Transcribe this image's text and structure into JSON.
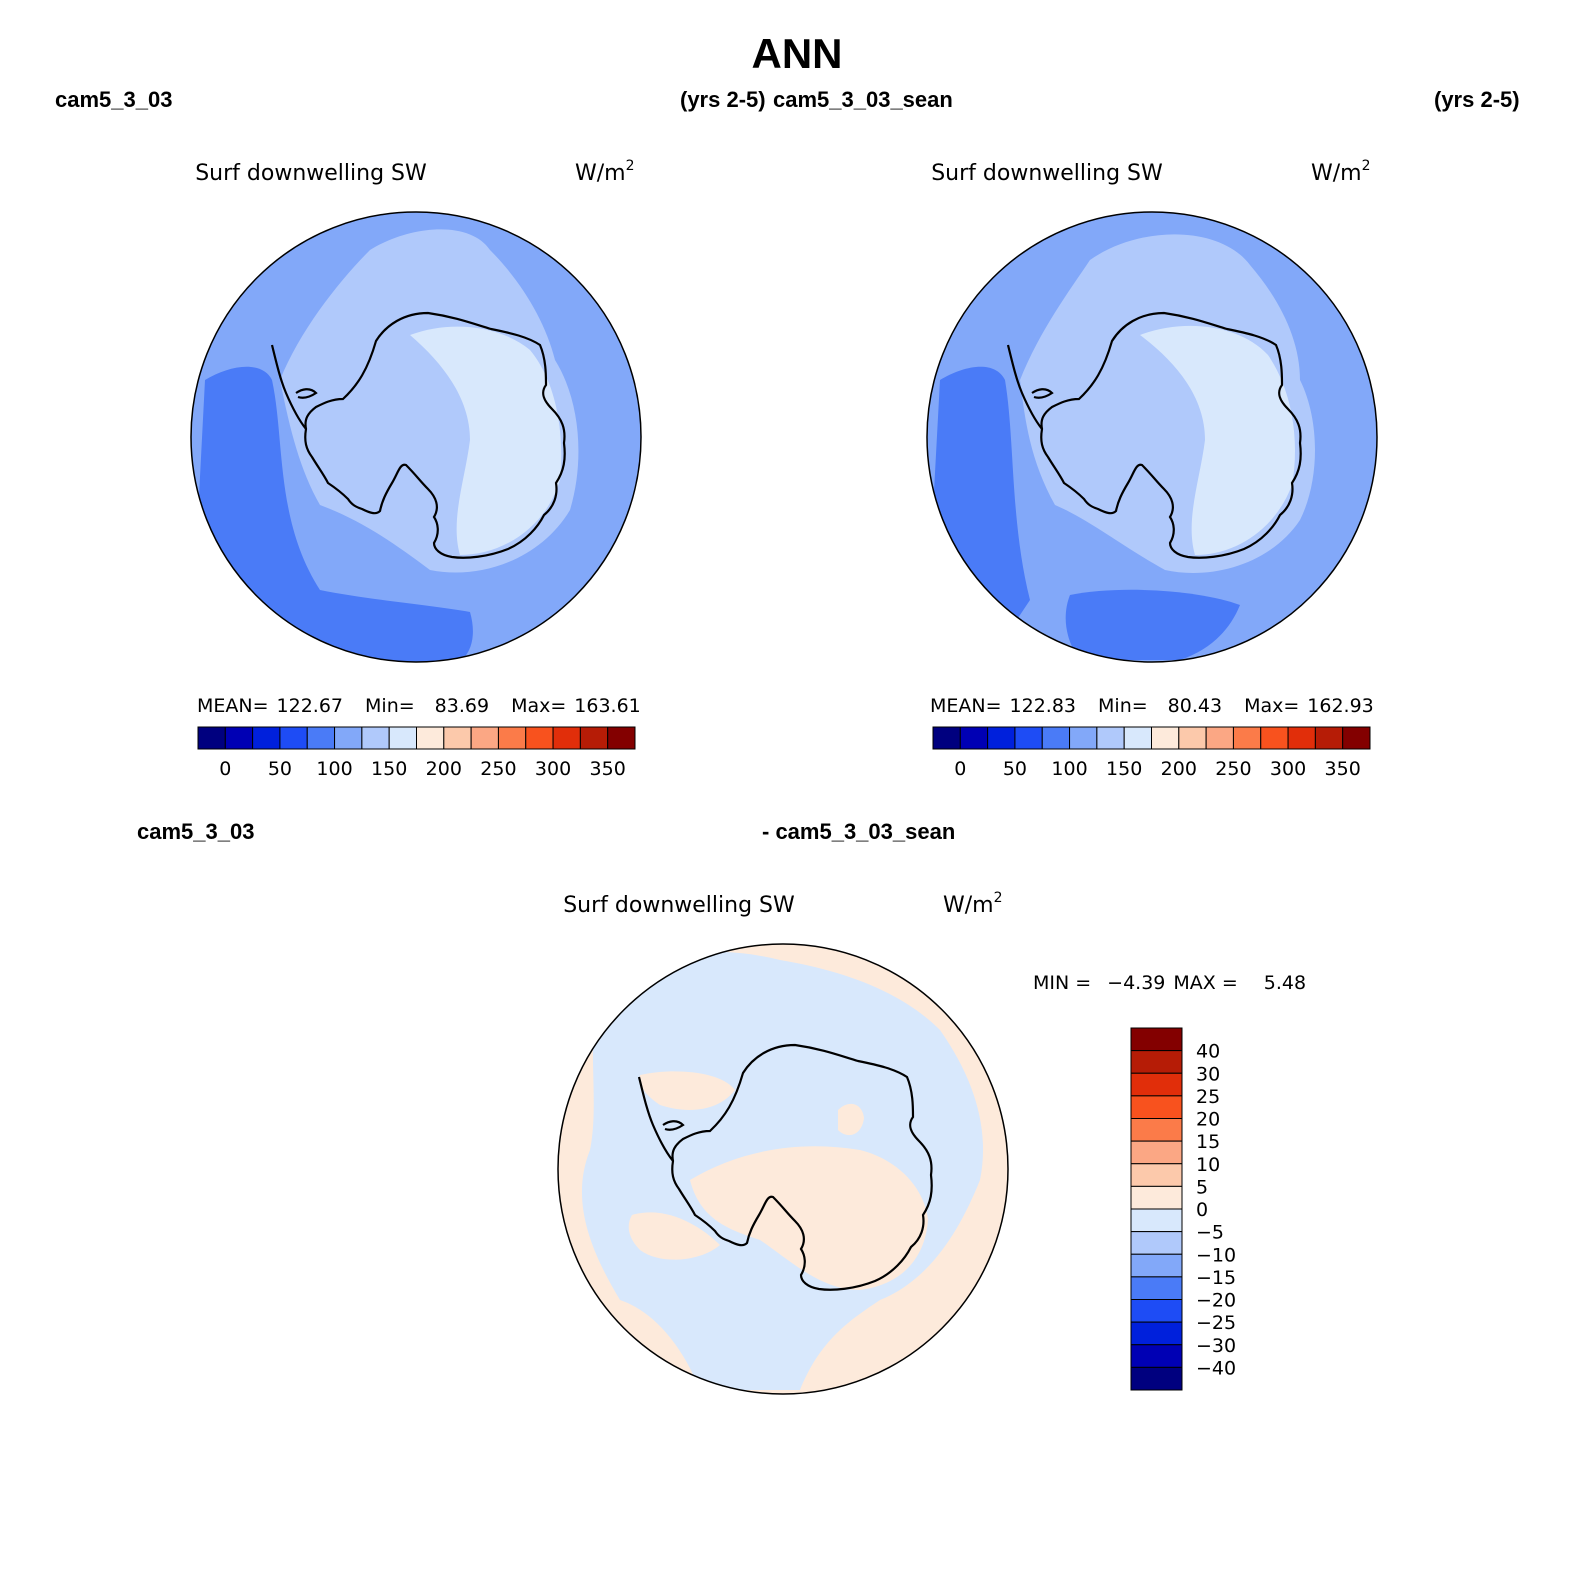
{
  "page": {
    "title": "ANN",
    "top_left_case": "cam5_3_03",
    "top_left_years": "(yrs 2-5)",
    "top_right_case": "cam5_3_03_sean",
    "top_right_years": "(yrs 2-5)",
    "bottom_left_case": "cam5_3_03",
    "bottom_right_case": "- cam5_3_03_sean"
  },
  "panels": [
    {
      "title": "Surf downwelling SW",
      "units": "W/m",
      "units_exp": "2",
      "mean_label": "MEAN=",
      "mean_value": "122.67",
      "min_label": "Min=",
      "min_value": "83.69",
      "max_label": "Max=",
      "max_value": "163.61"
    },
    {
      "title": "Surf downwelling SW",
      "units": "W/m",
      "units_exp": "2",
      "mean_label": "MEAN=",
      "mean_value": "122.83",
      "min_label": "Min=",
      "min_value": "80.43",
      "max_label": "Max=",
      "max_value": "162.93"
    },
    {
      "title": "Surf downwelling SW",
      "units": "W/m",
      "units_exp": "2",
      "min_label": "MIN =",
      "min_value": "−4.39",
      "max_label": "MAX =",
      "max_value": "5.48"
    }
  ],
  "colorbar_abs": {
    "colors": [
      "#00007f",
      "#0000b4",
      "#0020dc",
      "#1e4cf5",
      "#4a7bf7",
      "#82a8f9",
      "#b0c9fb",
      "#d8e8fc",
      "#fdeadb",
      "#fcc9ab",
      "#fba784",
      "#fb7b49",
      "#f8521e",
      "#e12e0a",
      "#b61c06",
      "#830000"
    ],
    "tick_labels": [
      "0",
      "50",
      "100",
      "150",
      "200",
      "250",
      "300",
      "350"
    ]
  },
  "colorbar_diff": {
    "colors": [
      "#00007f",
      "#0000b4",
      "#0020dc",
      "#1e4cf5",
      "#4a7bf7",
      "#82a8f9",
      "#b0c9fb",
      "#d8e8fc",
      "#fdeadb",
      "#fcc9ab",
      "#fba784",
      "#fb7b49",
      "#f8521e",
      "#e12e0a",
      "#b61c06",
      "#830000"
    ],
    "tick_labels": [
      "40",
      "30",
      "25",
      "20",
      "15",
      "10",
      "5",
      "0",
      "−5",
      "−10",
      "−15",
      "−20",
      "−25",
      "−30",
      "−40"
    ]
  },
  "map_colors": {
    "level_80_100": "#4a7bf7",
    "level_100_125": "#82a8f9",
    "level_125_150": "#b0c9fb",
    "level_150_175": "#d8e8fc",
    "diff_neg": "#d8e8fc",
    "diff_pos": "#fdeadb"
  }
}
